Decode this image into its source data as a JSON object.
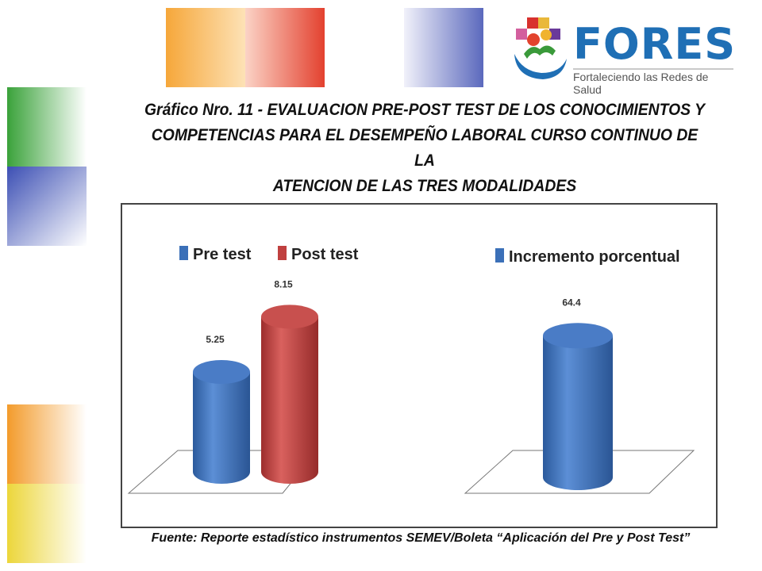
{
  "colors": {
    "pre_test": "#3b70b8",
    "post_test": "#c0403f",
    "incremento": "#3b70b8",
    "brand_blue": "#1f6fb5"
  },
  "logo": {
    "word": "FORES",
    "tagline": "Fortaleciendo las Redes de Salud"
  },
  "title": {
    "line1": "Gráfico Nro. 11 -  EVALUACION PRE-POST TEST DE LOS CONOCIMIENTOS Y",
    "line2": "COMPETENCIAS PARA EL DESEMPEÑO LABORAL CURSO CONTINUO DE LA",
    "line3": "ATENCION DE LAS TRES MODALIDADES"
  },
  "source": "Fuente: Reporte estadístico instrumentos SEMEV/Boleta “Aplicación del Pre y Post Test”",
  "chart_data": [
    {
      "type": "bar",
      "style": "3d-cylinder",
      "categories": [
        ""
      ],
      "series": [
        {
          "name": "Pre test",
          "values": [
            5.25
          ],
          "labels": [
            "5.25"
          ]
        },
        {
          "name": "Post test",
          "values": [
            8.15
          ],
          "labels": [
            "8.15"
          ]
        }
      ],
      "ylim": [
        0,
        10
      ],
      "grid": false,
      "legend": "top"
    },
    {
      "type": "bar",
      "style": "3d-cylinder",
      "categories": [
        ""
      ],
      "series": [
        {
          "name": "Incremento porcentual",
          "values": [
            64.4
          ],
          "labels": [
            "64.4"
          ]
        }
      ],
      "ylim": [
        0,
        80
      ],
      "grid": false,
      "legend": "top"
    }
  ]
}
